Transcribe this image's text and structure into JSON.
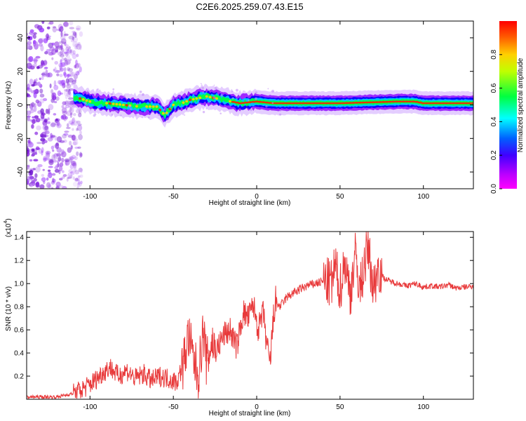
{
  "title": "C2E6.2025.259.07.43.E15",
  "colors": {
    "snr_line": "#e8393a",
    "spectrogram_band": [
      "#8b00ff",
      "#0000ff",
      "#00c8ff",
      "#00ff40",
      "#ffd000",
      "#ff0000"
    ],
    "noise_speckle": "#8b2be2",
    "axis": "#000000",
    "background": "#ffffff"
  },
  "chart_data": [
    {
      "type": "heatmap",
      "title": "C2E6.2025.259.07.43.E15",
      "xlabel": "Height of straight line (km)",
      "ylabel": "Frequency (Hz)",
      "xlim": [
        -138,
        130
      ],
      "ylim": [
        -50,
        50
      ],
      "x_ticks": [
        -100,
        -50,
        0,
        50,
        100
      ],
      "y_ticks": [
        -40,
        -20,
        0,
        20,
        40
      ],
      "grid": false,
      "colorbar": {
        "label": "Normalized spectral amplitude",
        "range": [
          0,
          1
        ],
        "ticks": [
          "0.0",
          "0.2",
          "0.4",
          "0.6",
          "0.8"
        ],
        "colormap": [
          "#ff00ff",
          "#8000ff",
          "#0000ff",
          "#00ffff",
          "#00ff00",
          "#ffff00",
          "#ff8000",
          "#ff0000"
        ]
      },
      "noise_region": {
        "x_range": [
          -138,
          -105
        ],
        "y_range": [
          -50,
          50
        ]
      },
      "band_centerline": [
        {
          "x": -110,
          "y": 5
        },
        {
          "x": -100,
          "y": 2
        },
        {
          "x": -90,
          "y": 1
        },
        {
          "x": -80,
          "y": 0
        },
        {
          "x": -70,
          "y": -1
        },
        {
          "x": -60,
          "y": -1
        },
        {
          "x": -55,
          "y": -6
        },
        {
          "x": -50,
          "y": 0
        },
        {
          "x": -45,
          "y": 1
        },
        {
          "x": -40,
          "y": 3
        },
        {
          "x": -30,
          "y": 5
        },
        {
          "x": -20,
          "y": 3
        },
        {
          "x": -10,
          "y": 1
        },
        {
          "x": 0,
          "y": 2
        },
        {
          "x": 10,
          "y": 1
        },
        {
          "x": 50,
          "y": 1
        },
        {
          "x": 85,
          "y": 2
        },
        {
          "x": 95,
          "y": 2
        },
        {
          "x": 100,
          "y": 1
        },
        {
          "x": 130,
          "y": 1
        }
      ]
    },
    {
      "type": "line",
      "xlabel": "Height of straight line (km)",
      "ylabel": "SNR (10 * v/v)",
      "multiplier_label": "(x10",
      "multiplier_exp": "4",
      "multiplier_close": ")",
      "xlim": [
        -138,
        130
      ],
      "ylim": [
        0,
        1.45
      ],
      "x_ticks": [
        -100,
        -50,
        0,
        50,
        100
      ],
      "y_ticks": [
        "0.2",
        "0.4",
        "0.6",
        "0.8",
        "1.0",
        "1.2",
        "1.4"
      ],
      "grid": false,
      "series": [
        {
          "x": [
            -138,
            -130,
            -120,
            -113,
            -108,
            -103,
            -98,
            -93,
            -88,
            -83,
            -78,
            -73,
            -68,
            -63,
            -58,
            -53,
            -48,
            -44,
            -41,
            -38,
            -35,
            -32,
            -30,
            -27,
            -24,
            -20,
            -16,
            -12,
            -8,
            -5,
            -2,
            1,
            4,
            7,
            8,
            9,
            11,
            14,
            18,
            22,
            26,
            30,
            35,
            40,
            45,
            47,
            50,
            53,
            56,
            59,
            62,
            65,
            67,
            70,
            73,
            76,
            80,
            85,
            90,
            95,
            100,
            105,
            110,
            115,
            120,
            125,
            130
          ],
          "y": [
            0.02,
            0.02,
            0.02,
            0.04,
            0.06,
            0.1,
            0.15,
            0.22,
            0.28,
            0.2,
            0.25,
            0.18,
            0.22,
            0.16,
            0.2,
            0.18,
            0.15,
            0.3,
            0.55,
            0.35,
            0.2,
            0.6,
            0.3,
            0.5,
            0.42,
            0.55,
            0.6,
            0.45,
            0.75,
            0.7,
            0.82,
            0.6,
            0.75,
            0.35,
            0.3,
            0.5,
            0.85,
            0.8,
            0.88,
            0.92,
            0.95,
            0.98,
            1.0,
            1.02,
            1.0,
            1.15,
            0.95,
            1.2,
            0.9,
            1.25,
            0.95,
            1.2,
            1.3,
            0.95,
            1.15,
            1.05,
            1.02,
            1.0,
            0.98,
            1.0,
            0.97,
            0.98,
            0.97,
            0.99,
            0.96,
            0.97,
            0.98
          ]
        }
      ]
    }
  ]
}
